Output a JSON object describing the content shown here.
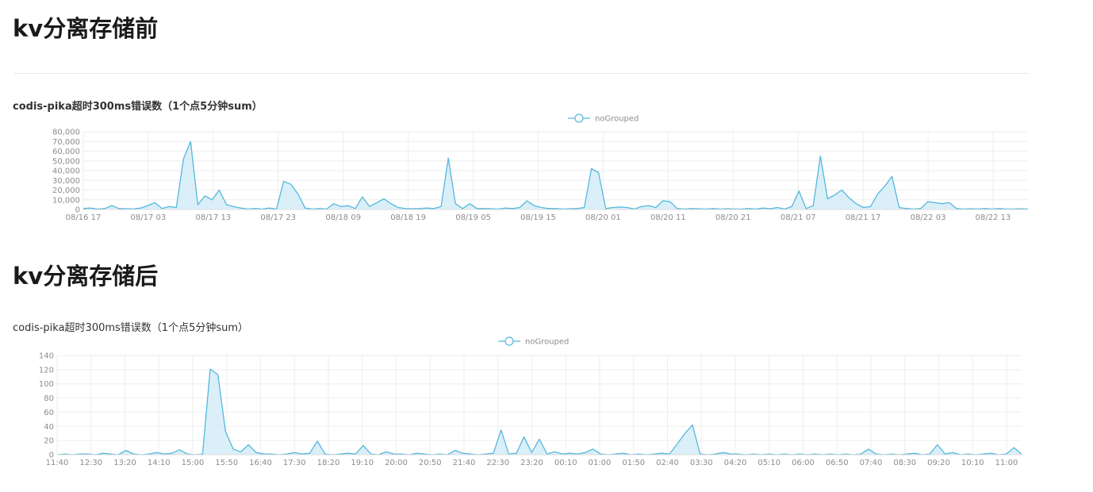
{
  "sections": [
    {
      "heading": "kv分离存储前",
      "chart_title": "codis-pika超时300ms错误数（1个点5分钟sum）"
    },
    {
      "heading": "kv分离存储后",
      "chart_title": "codis-pika超时300ms错误数（1个点5分钟sum）"
    }
  ],
  "colors": {
    "line": "#55b8dd",
    "fill": "#d4ecf7",
    "grid": "#eeeeee"
  },
  "chart_data": [
    {
      "type": "area",
      "title": "codis-pika超时300ms错误数（1个点5分钟sum）",
      "legend": "noGrouped",
      "legend_position": "top-center",
      "grid": true,
      "ylim": [
        0,
        80000
      ],
      "yticks": [
        "80,000",
        "70,000",
        "60,000",
        "50,000",
        "40,000",
        "30,000",
        "20,000",
        "10,000",
        "0"
      ],
      "xticks": [
        "08/16 17",
        "08/17 03",
        "08/17 13",
        "08/17 23",
        "08/18 09",
        "08/18 19",
        "08/19 05",
        "08/19 15",
        "08/20 01",
        "08/20 11",
        "08/20 21",
        "08/21 07",
        "08/21 17",
        "08/22 03",
        "08/22 13"
      ],
      "series": [
        {
          "name": "noGrouped",
          "values": [
            1000,
            1500,
            500,
            1000,
            4000,
            1000,
            800,
            600,
            1500,
            4000,
            7000,
            1000,
            3000,
            2000,
            52000,
            70000,
            5000,
            14000,
            10000,
            20000,
            5000,
            3000,
            1500,
            500,
            1000,
            500,
            1500,
            500,
            29000,
            26000,
            16000,
            1500,
            500,
            1000,
            500,
            6000,
            3000,
            4000,
            1000,
            13000,
            3000,
            7000,
            11000,
            6000,
            2000,
            1000,
            800,
            1000,
            1500,
            1000,
            3000,
            53000,
            6000,
            1000,
            6000,
            1000,
            1000,
            800,
            500,
            1500,
            1000,
            2000,
            9000,
            4000,
            2000,
            1000,
            1000,
            500,
            800,
            1000,
            2000,
            42000,
            38000,
            1000,
            2000,
            2500,
            2000,
            500,
            3000,
            4000,
            2000,
            9000,
            8000,
            1000,
            500,
            1000,
            800,
            500,
            1000,
            500,
            800,
            500,
            500,
            1000,
            500,
            1500,
            800,
            2000,
            500,
            3000,
            19000,
            1000,
            4000,
            55000,
            11000,
            15000,
            20000,
            12000,
            6000,
            2000,
            3000,
            16000,
            24000,
            34000,
            2000,
            1000,
            500,
            1000,
            8000,
            7000,
            6000,
            7000,
            1000,
            500,
            800,
            500,
            1000,
            500,
            1000,
            500,
            500,
            800,
            500
          ]
        }
      ]
    },
    {
      "type": "area",
      "title": "codis-pika超时300ms错误数（1个点5分钟sum）",
      "legend": "noGrouped",
      "legend_position": "top-center",
      "grid": true,
      "ylim": [
        0,
        140
      ],
      "yticks": [
        "140",
        "120",
        "100",
        "80",
        "60",
        "40",
        "20",
        "0"
      ],
      "xticks": [
        "11:40",
        "12:30",
        "13:20",
        "14:10",
        "15:00",
        "15:50",
        "16:40",
        "17:30",
        "18:20",
        "19:10",
        "20:00",
        "20:50",
        "21:40",
        "22:30",
        "23:20",
        "00:10",
        "01:00",
        "01:50",
        "02:40",
        "03:30",
        "04:20",
        "05:10",
        "06:00",
        "06:50",
        "07:40",
        "08:30",
        "09:20",
        "10:10",
        "11:00"
      ],
      "series": [
        {
          "name": "noGrouped",
          "values": [
            0,
            1,
            0,
            1,
            1,
            0,
            2,
            1,
            0,
            6,
            1,
            0,
            1,
            3,
            1,
            2,
            7,
            1,
            0,
            1,
            121,
            113,
            33,
            8,
            4,
            14,
            3,
            1,
            1,
            0,
            1,
            3,
            1,
            2,
            19,
            1,
            0,
            1,
            2,
            1,
            13,
            1,
            0,
            4,
            1,
            1,
            0,
            2,
            1,
            0,
            1,
            0,
            6,
            2,
            1,
            0,
            1,
            2,
            35,
            1,
            2,
            25,
            3,
            22,
            1,
            4,
            1,
            2,
            1,
            3,
            8,
            1,
            0,
            1,
            2,
            0,
            1,
            0,
            1,
            2,
            1,
            15,
            30,
            42,
            1,
            0,
            1,
            3,
            1,
            1,
            0,
            1,
            0,
            1,
            0,
            1,
            0,
            1,
            0,
            1,
            0,
            1,
            0,
            1,
            0,
            1,
            8,
            1,
            0,
            1,
            0,
            1,
            2,
            0,
            1,
            14,
            1,
            3,
            0,
            1,
            0,
            1,
            2,
            0,
            1,
            10,
            1
          ]
        }
      ]
    }
  ]
}
